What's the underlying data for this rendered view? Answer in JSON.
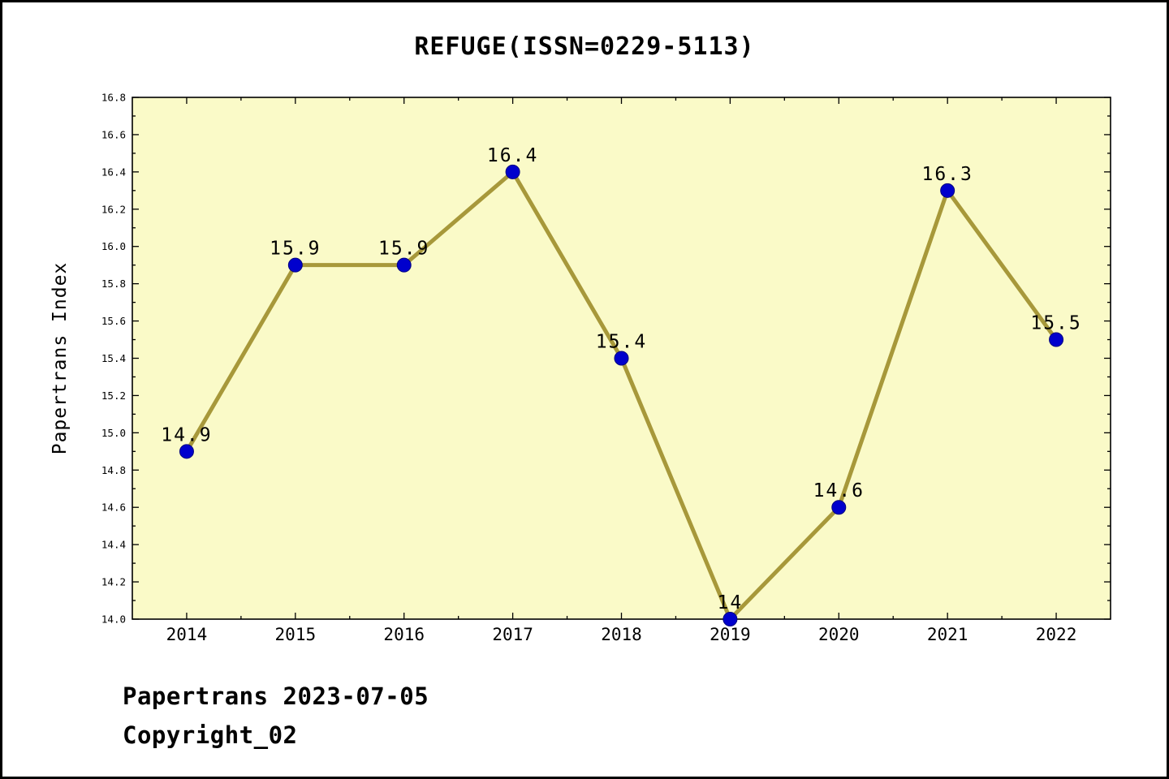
{
  "chart_data": {
    "type": "line",
    "title": "REFUGE(ISSN=0229-5113)",
    "ylabel": "Papertrans Index",
    "xlabel": "",
    "categories": [
      "2014",
      "2015",
      "2016",
      "2017",
      "2018",
      "2019",
      "2020",
      "2021",
      "2022"
    ],
    "series": [
      {
        "name": "Papertrans Index",
        "values": [
          14.9,
          15.9,
          15.9,
          16.4,
          15.4,
          14.0,
          14.6,
          16.3,
          15.5
        ]
      }
    ],
    "point_labels": [
      "14.9",
      "15.9",
      "15.9",
      "16.4",
      "15.4",
      "14",
      "14.6",
      "16.3",
      "15.5"
    ],
    "ylim": [
      14.0,
      16.8
    ],
    "ytick_step": 0.2,
    "ytick_minor_step": 0.1,
    "grid": false,
    "legend": "none",
    "colors": {
      "line": "#A7983A",
      "marker_fill": "#0000CD",
      "marker_edge": "#000080",
      "plot_bg": "#FAFAC8",
      "figure_bg": "#FFFFFF",
      "text": "#000000"
    }
  },
  "footer": {
    "line1": "Papertrans 2023-07-05",
    "line2": "Copyright_02"
  }
}
